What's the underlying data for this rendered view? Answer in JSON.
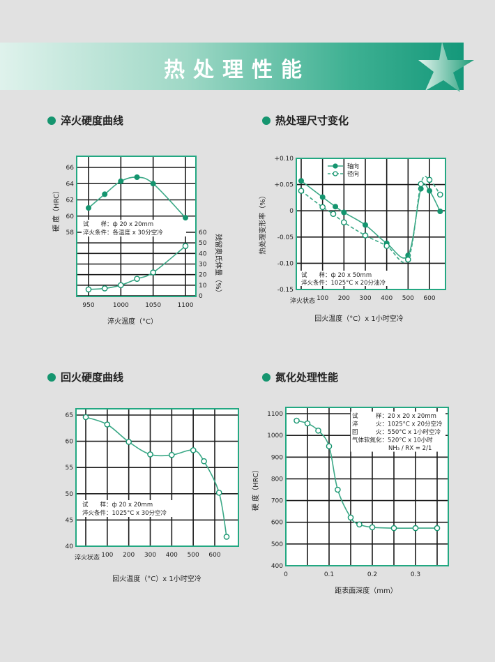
{
  "page_title": "热处理性能",
  "colors": {
    "accent": "#15956f",
    "grid": "#1a1a1a",
    "frame": "#23a882",
    "line": "#3aa886"
  },
  "sections": [
    "淬火硬度曲线",
    "热处理尺寸变化",
    "回火硬度曲线",
    "氮化处理性能"
  ],
  "chart_data": [
    {
      "type": "line",
      "title": "淬火硬度曲线",
      "xlabel": "淬火温度（°C）",
      "ylabel": "硬 度（HRC）",
      "y2label": "残留奥氏体量（%）",
      "x_ticks": [
        "950",
        "1000",
        "1050",
        "1100"
      ],
      "y_ticks": [
        "58",
        "60",
        "62",
        "64",
        "66"
      ],
      "y2_ticks": [
        "0",
        "10",
        "20",
        "30",
        "40",
        "50",
        "60"
      ],
      "xlim": [
        950,
        1100
      ],
      "ylim": [
        58,
        66
      ],
      "y2lim": [
        0,
        60
      ],
      "grid": true,
      "annotations": [
        "试　　样：ф 20 x 20mm",
        "淬火条件：各温度 x 30分空冷"
      ],
      "series": [
        {
          "axis": "left",
          "marker": "filled",
          "x": [
            950,
            975,
            1000,
            1025,
            1050,
            1100
          ],
          "y": [
            61.0,
            62.7,
            64.3,
            64.8,
            64.0,
            59.8
          ]
        },
        {
          "axis": "right",
          "marker": "open",
          "x": [
            950,
            975,
            1000,
            1025,
            1050,
            1100
          ],
          "y": [
            6,
            7,
            10,
            16,
            22,
            47
          ]
        }
      ]
    },
    {
      "type": "line",
      "title": "热处理尺寸变化",
      "xlabel": "回火温度（°C）x 1小时空冷",
      "ylabel": "热处理变形率（%）",
      "x_ticks": [
        "淬火状态",
        "100",
        "200",
        "300",
        "400",
        "500",
        "600"
      ],
      "y_ticks": [
        "-0.15",
        "-0.10",
        "-0.05",
        "0",
        "+0.05",
        "+0.10"
      ],
      "xlim": [
        0,
        650
      ],
      "ylim": [
        -0.15,
        0.1
      ],
      "grid": true,
      "legend_position": "top-left",
      "annotations": [
        "试　　样：ф 20 x 50mm",
        "淬火条件：1025°C x 20分油冷"
      ],
      "series": [
        {
          "name": "轴向",
          "marker": "filled",
          "dash": false,
          "x": [
            0,
            100,
            160,
            200,
            300,
            400,
            500,
            560,
            600,
            650
          ],
          "y": [
            0.057,
            0.026,
            0.008,
            -0.003,
            -0.027,
            -0.062,
            -0.085,
            0.042,
            0.038,
            -0.001
          ]
        },
        {
          "name": "径向",
          "marker": "open",
          "dash": true,
          "x": [
            0,
            100,
            150,
            200,
            300,
            400,
            500,
            560,
            600,
            650
          ],
          "y": [
            0.038,
            0.007,
            -0.006,
            -0.022,
            -0.047,
            -0.067,
            -0.093,
            0.051,
            0.059,
            0.031
          ]
        }
      ]
    },
    {
      "type": "line",
      "title": "回火硬度曲线",
      "xlabel": "回火温度（°C）x 1小时空冷",
      "ylabel": "",
      "x_ticks": [
        "淬火状态",
        "100",
        "200",
        "300",
        "400",
        "500",
        "600"
      ],
      "y_ticks": [
        "40",
        "45",
        "50",
        "55",
        "60",
        "65"
      ],
      "xlim": [
        0,
        650
      ],
      "ylim": [
        40,
        65
      ],
      "grid": true,
      "annotations": [
        "试　　样：ф 20 x 20mm",
        "淬火条件：1025°C x 30分空冷"
      ],
      "series": [
        {
          "marker": "open",
          "x": [
            0,
            100,
            200,
            300,
            400,
            500,
            550,
            620,
            655
          ],
          "y": [
            64.6,
            63.2,
            59.9,
            57.5,
            57.4,
            58.3,
            56.2,
            50.2,
            41.8
          ]
        }
      ]
    },
    {
      "type": "line",
      "title": "氮化处理性能",
      "xlabel": "距表面深度（mm）",
      "ylabel": "硬 度（HRC）",
      "x_ticks": [
        "0",
        "0.1",
        "0.2",
        "0.3"
      ],
      "y_ticks": [
        "400",
        "500",
        "600",
        "700",
        "800",
        "900",
        "1000",
        "1100"
      ],
      "xlim": [
        0,
        0.375
      ],
      "ylim": [
        400,
        1100
      ],
      "grid": true,
      "annotations": [
        "试　　　样：20 x 20 x 20mm",
        "淬　　　火：1025°C x 20分空冷",
        "回　　　火：550°C x 1小时空冷",
        "气体软氮化：520°C x 10小时",
        "NH₃ / RX = 2/1"
      ],
      "series": [
        {
          "marker": "open",
          "x": [
            0.025,
            0.05,
            0.075,
            0.1,
            0.12,
            0.15,
            0.17,
            0.2,
            0.25,
            0.3,
            0.35
          ],
          "y": [
            1068,
            1055,
            1022,
            950,
            750,
            622,
            590,
            577,
            573,
            573,
            573
          ]
        }
      ]
    }
  ]
}
